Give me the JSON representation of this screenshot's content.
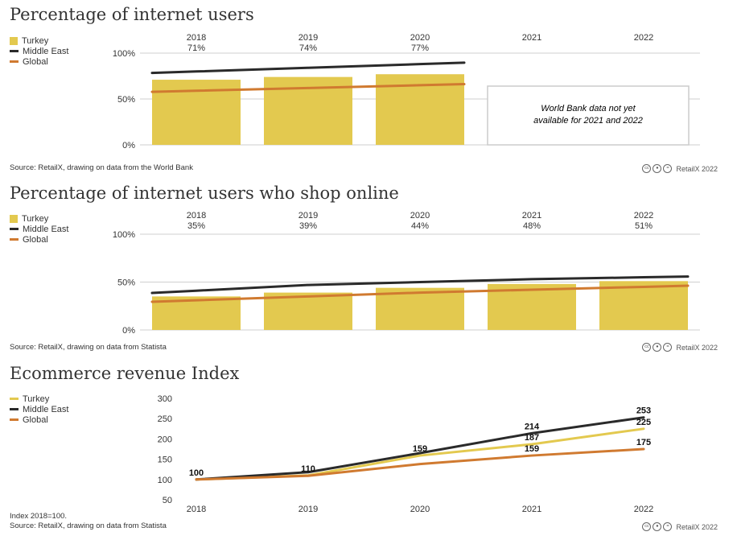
{
  "colors": {
    "turkey": "#e3c94f",
    "middle_east": "#2a2a2a",
    "global": "#d07a30",
    "grid": "#cfcfcf",
    "note_border": "#cccccc"
  },
  "legend": [
    {
      "name": "Turkey",
      "color": "#e3c94f"
    },
    {
      "name": "Middle East",
      "color": "#2a2a2a"
    },
    {
      "name": "Global",
      "color": "#d07a30"
    }
  ],
  "credit": {
    "icons": [
      "cc-icon",
      "by-icon",
      "nd-icon"
    ],
    "text": "RetailX 2022"
  },
  "chart_data": [
    {
      "type": "bar",
      "title": "Percentage of internet users",
      "categories": [
        "2018",
        "2019",
        "2020",
        "2021",
        "2022"
      ],
      "value_labels": [
        "71%",
        "74%",
        "77%",
        "",
        ""
      ],
      "y_ticks": [
        "0%",
        "50%",
        "100%"
      ],
      "ylim": [
        0,
        100
      ],
      "series": [
        {
          "name": "Turkey",
          "kind": "bar",
          "values": [
            71,
            74,
            77,
            null,
            null
          ]
        },
        {
          "name": "Middle East",
          "kind": "line",
          "values": [
            80,
            84,
            88,
            null,
            null
          ]
        },
        {
          "name": "Global",
          "kind": "line",
          "values": [
            59,
            62,
            65,
            null,
            null
          ]
        }
      ],
      "note": [
        "World Bank data not yet",
        "available for 2021 and 2022"
      ],
      "source": [
        "Source: RetailX, drawing on data from the World Bank"
      ]
    },
    {
      "type": "bar",
      "title": "Percentage of internet users who shop online",
      "categories": [
        "2018",
        "2019",
        "2020",
        "2021",
        "2022"
      ],
      "value_labels": [
        "35%",
        "39%",
        "44%",
        "48%",
        "51%"
      ],
      "y_ticks": [
        "0%",
        "50%",
        "100%"
      ],
      "ylim": [
        0,
        100
      ],
      "series": [
        {
          "name": "Turkey",
          "kind": "bar",
          "values": [
            35,
            39,
            44,
            48,
            51
          ]
        },
        {
          "name": "Middle East",
          "kind": "line",
          "values": [
            41,
            47,
            50,
            53,
            55
          ]
        },
        {
          "name": "Global",
          "kind": "line",
          "values": [
            31,
            35,
            39,
            42,
            45
          ]
        }
      ],
      "source": [
        "Source: RetailX, drawing on data from Statista"
      ]
    },
    {
      "type": "line",
      "title": "Ecommerce revenue Index",
      "categories": [
        "2018",
        "2019",
        "2020",
        "2021",
        "2022"
      ],
      "y_ticks": [
        "50",
        "100",
        "150",
        "200",
        "250",
        "300"
      ],
      "ylim": [
        50,
        300
      ],
      "series": [
        {
          "name": "Turkey",
          "values": [
            100,
            110,
            159,
            187,
            225
          ]
        },
        {
          "name": "Middle East",
          "values": [
            100,
            118,
            165,
            214,
            253
          ]
        },
        {
          "name": "Global",
          "values": [
            100,
            109,
            138,
            159,
            175
          ]
        }
      ],
      "data_labels": [
        {
          "category": "2018",
          "value": 100,
          "text": "100"
        },
        {
          "category": "2019",
          "value": 110,
          "text": "110"
        },
        {
          "category": "2020",
          "value": 159,
          "text": "159"
        },
        {
          "category": "2021",
          "value": 214,
          "text": "214"
        },
        {
          "category": "2021",
          "value": 187,
          "text": "187"
        },
        {
          "category": "2021",
          "value": 159,
          "text": "159"
        },
        {
          "category": "2022",
          "value": 253,
          "text": "253"
        },
        {
          "category": "2022",
          "value": 225,
          "text": "225"
        },
        {
          "category": "2022",
          "value": 175,
          "text": "175"
        }
      ],
      "source": [
        "Index 2018=100.",
        "Source: RetailX, drawing on data from Statista"
      ]
    }
  ]
}
